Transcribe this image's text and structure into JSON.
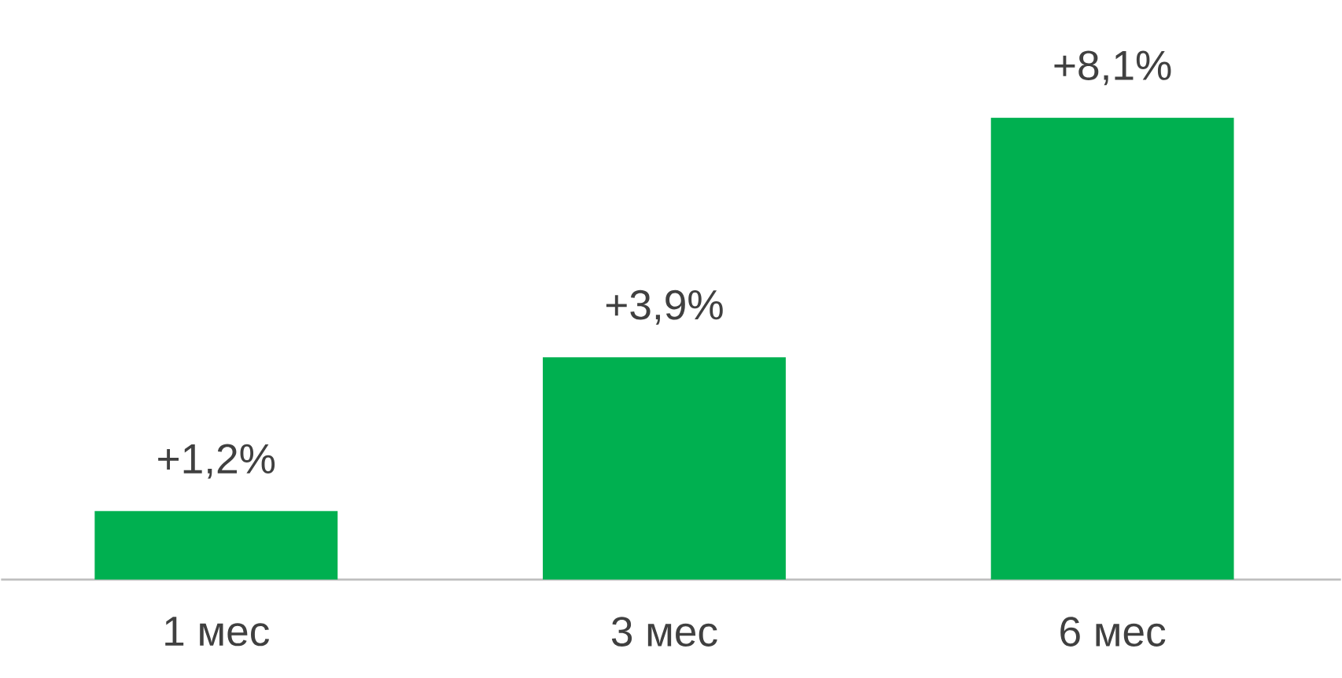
{
  "chart_data": {
    "type": "bar",
    "categories": [
      "1 мес",
      "3 мес",
      "6 мес"
    ],
    "values": [
      1.2,
      3.9,
      8.1
    ],
    "value_labels": [
      "+1,2%",
      "+3,9%",
      "+8,1%"
    ],
    "color": "#00b050"
  }
}
